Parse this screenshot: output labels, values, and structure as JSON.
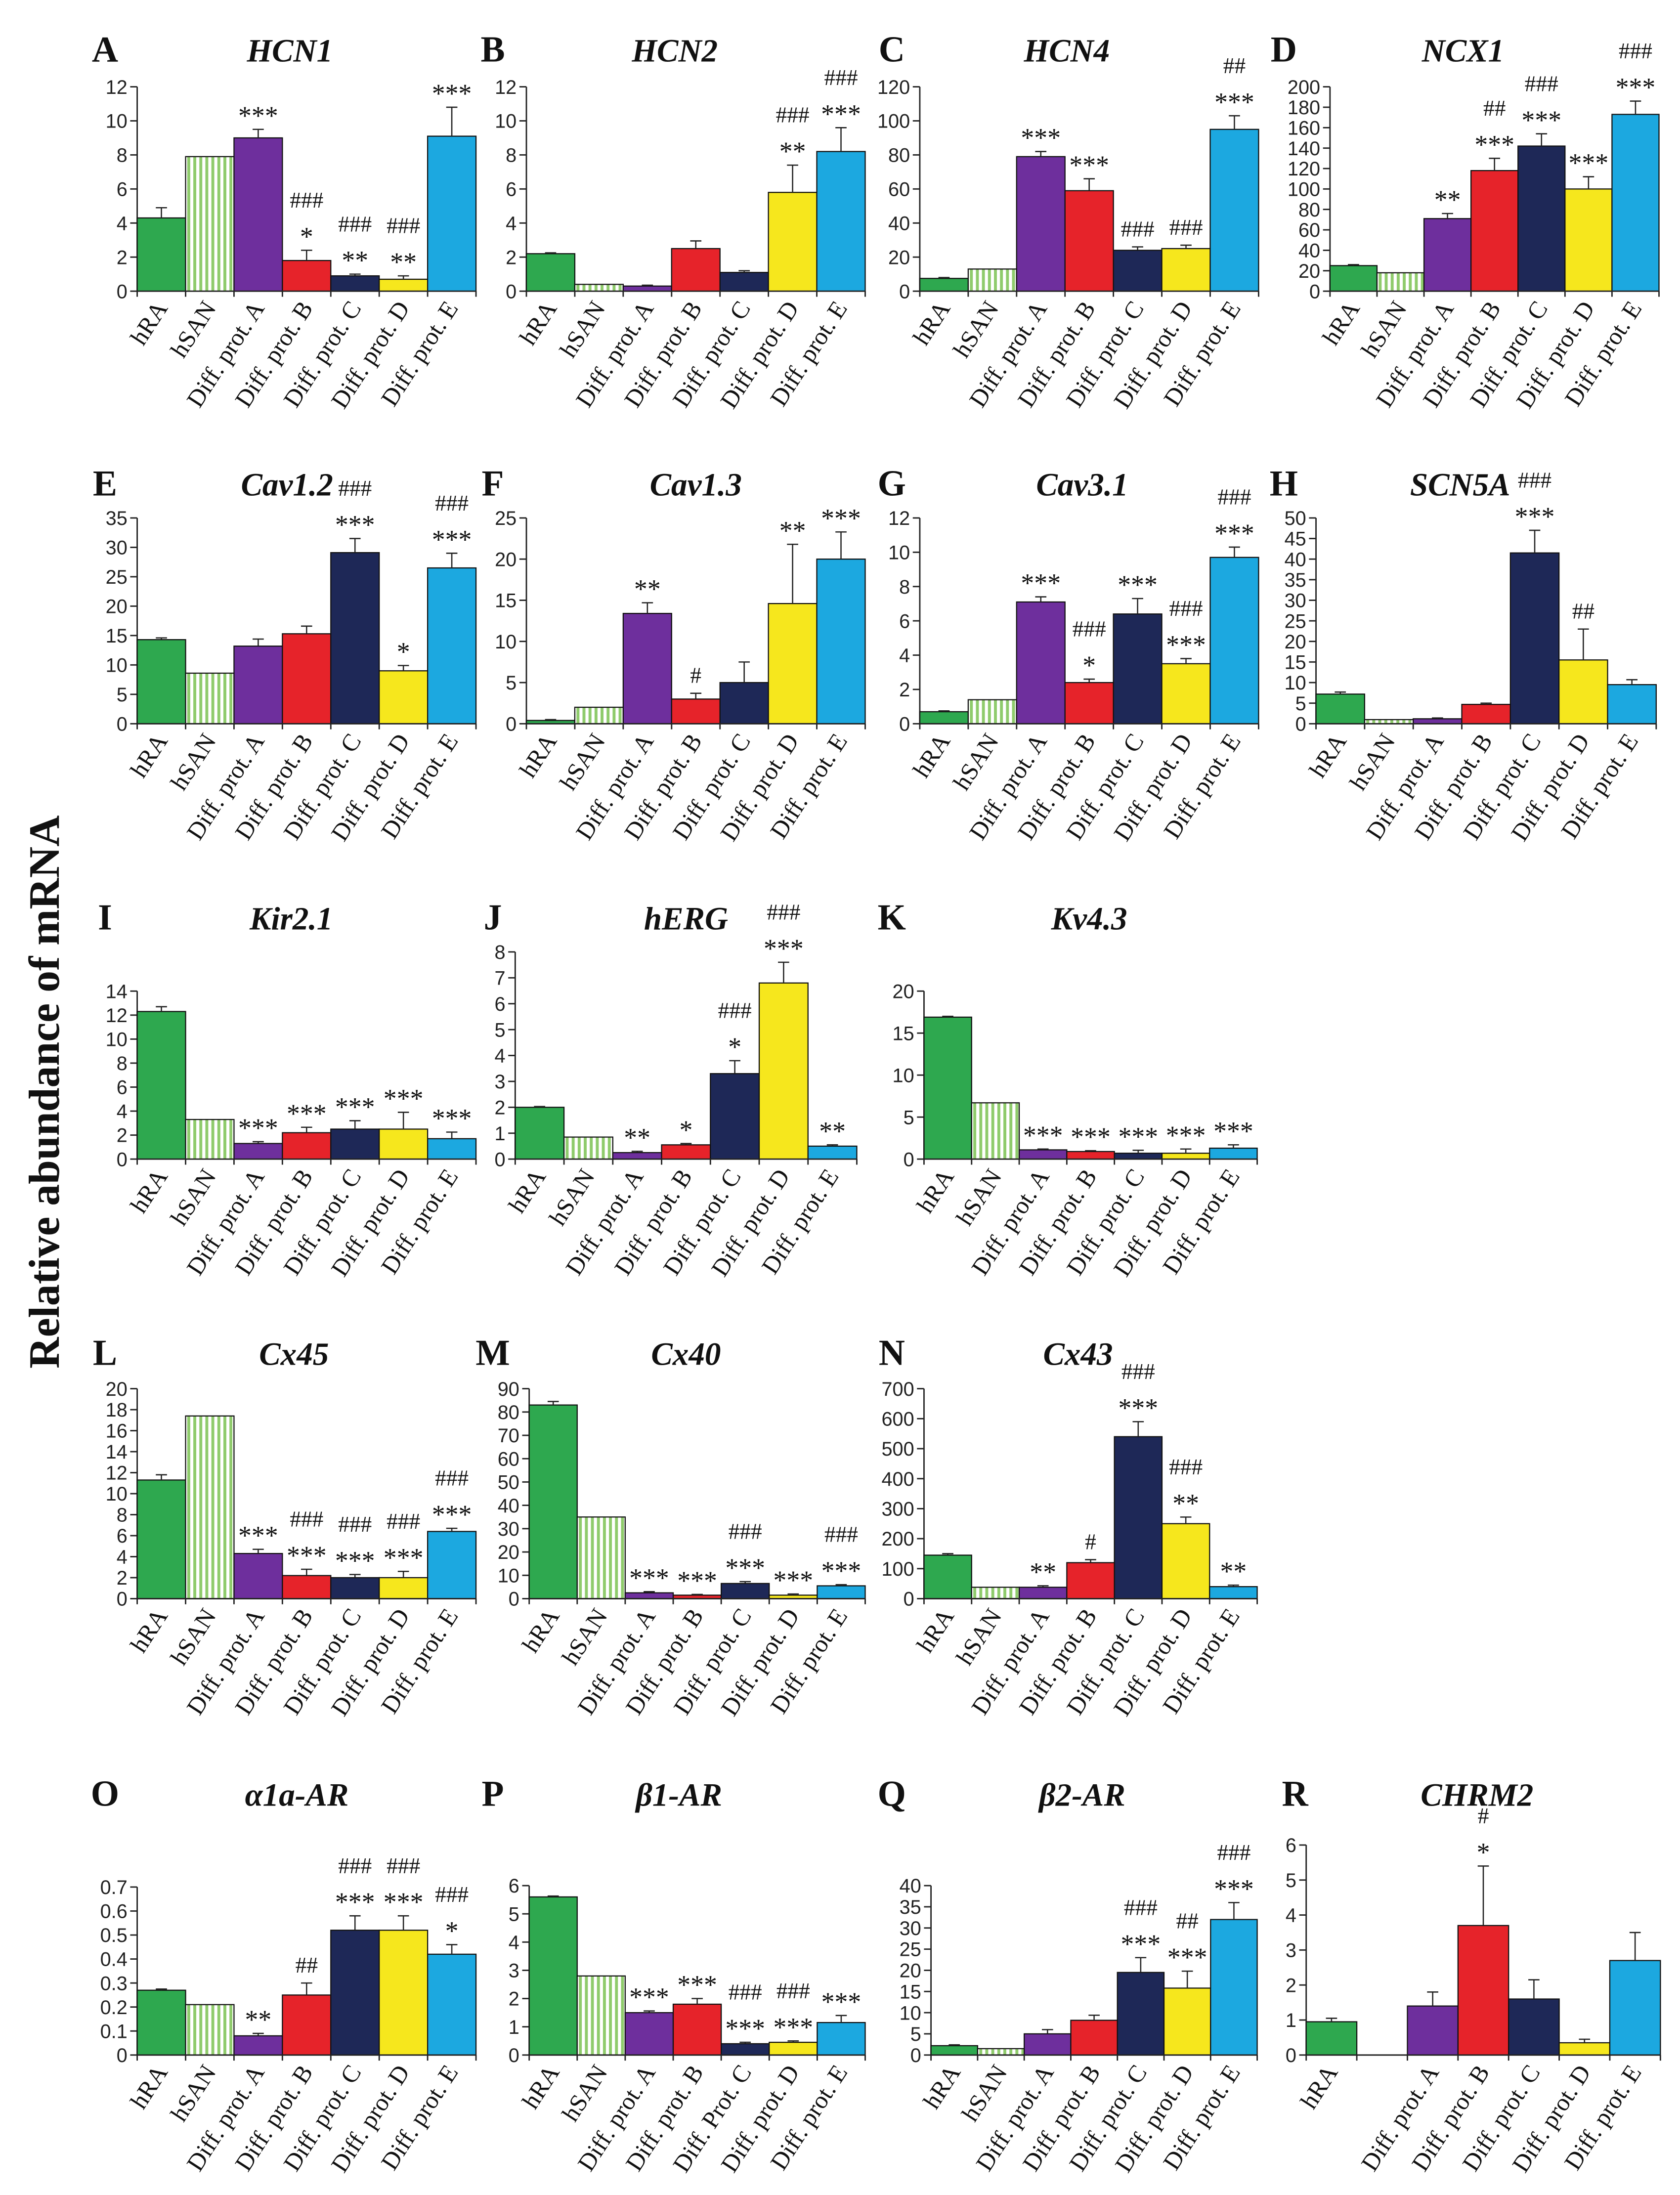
{
  "figure": {
    "ylabel": "Relative abundance of mRNA"
  },
  "colors": {
    "bars": [
      "#2ea84f",
      "#ffffff",
      "#6e2f9d",
      "#e6232a",
      "#1e2857",
      "#f6e71d",
      "#1ca8e0"
    ],
    "hsan_stripe": "#8fcb6c",
    "outline": "#111111"
  },
  "chart_data": [
    {
      "panel": "A",
      "type": "bar",
      "title": "HCN1",
      "categories": [
        "hRA",
        "hSAN",
        "Diff. prot. A",
        "Diff. prot. B",
        "Diff. prot. C",
        "Diff. prot. D",
        "Diff. prot. E"
      ],
      "values": [
        4.3,
        7.9,
        9.0,
        1.8,
        0.9,
        0.7,
        9.1
      ],
      "errors": [
        0.6,
        0,
        0.5,
        0.6,
        0.1,
        0.2,
        1.7
      ],
      "ylim": [
        0,
        12
      ],
      "yticks": [
        0,
        2,
        4,
        6,
        8,
        10,
        12
      ],
      "annotations": [
        [],
        [],
        [
          "***"
        ],
        [
          "###",
          "*"
        ],
        [
          "###",
          "**"
        ],
        [
          "###",
          "**"
        ],
        [
          "***"
        ]
      ]
    },
    {
      "panel": "B",
      "type": "bar",
      "title": "HCN2",
      "categories": [
        "hRA",
        "hSAN",
        "Diff. prot. A",
        "Diff. prot. B",
        "Diff. prot. C",
        "Diff. prot. D",
        "Diff. prot. E"
      ],
      "values": [
        2.2,
        0.4,
        0.3,
        2.5,
        1.1,
        5.8,
        8.2
      ],
      "errors": [
        0.05,
        0,
        0.05,
        0.45,
        0.1,
        1.6,
        1.4
      ],
      "ylim": [
        0,
        12
      ],
      "yticks": [
        0,
        2,
        4,
        6,
        8,
        10,
        12
      ],
      "annotations": [
        [],
        [],
        [],
        [],
        [],
        [
          "###",
          "**"
        ],
        [
          "###",
          "***"
        ]
      ]
    },
    {
      "panel": "C",
      "type": "bar",
      "title": "HCN4",
      "categories": [
        "hRA",
        "hSAN",
        "Diff. prot. A",
        "Diff. prot. B",
        "Diff. prot. C",
        "Diff. prot. D",
        "Diff. prot. E"
      ],
      "values": [
        7.5,
        13,
        79,
        59,
        24,
        25,
        95
      ],
      "errors": [
        0.5,
        0,
        3,
        7,
        2,
        2,
        8
      ],
      "ylim": [
        0,
        120
      ],
      "yticks": [
        0,
        20,
        40,
        60,
        80,
        100,
        120
      ],
      "annotations": [
        [],
        [],
        [
          "***"
        ],
        [
          "***"
        ],
        [
          "###"
        ],
        [
          "###"
        ],
        [
          "##",
          "***"
        ]
      ]
    },
    {
      "panel": "D",
      "type": "bar",
      "title": "NCX1",
      "categories": [
        "hRA",
        "hSAN",
        "Diff. prot. A",
        "Diff. prot. B",
        "Diff. prot. C",
        "Diff. prot. D",
        "Diff. prot. E"
      ],
      "values": [
        25,
        18,
        71,
        118,
        142,
        100,
        173
      ],
      "errors": [
        1,
        0,
        5,
        12,
        12,
        12,
        13
      ],
      "ylim": [
        0,
        200
      ],
      "yticks": [
        0,
        20,
        40,
        60,
        80,
        100,
        120,
        140,
        160,
        180,
        200
      ],
      "annotations": [
        [],
        [],
        [
          "**"
        ],
        [
          "##",
          "***"
        ],
        [
          "###",
          "***"
        ],
        [
          "***"
        ],
        [
          "###",
          "***"
        ]
      ]
    },
    {
      "panel": "E",
      "type": "bar",
      "title": "Cav1.2",
      "categories": [
        "hRA",
        "hSAN",
        "Diff. prot. A",
        "Diff. prot. B",
        "Diff. prot. C",
        "Diff. prot. D",
        "Diff. prot. E"
      ],
      "values": [
        14.3,
        8.6,
        13.2,
        15.3,
        29.1,
        9.0,
        26.5
      ],
      "errors": [
        0.3,
        0,
        1.2,
        1.3,
        2.4,
        0.9,
        2.5
      ],
      "ylim": [
        0,
        35
      ],
      "yticks": [
        0,
        5,
        10,
        15,
        20,
        25,
        30,
        35
      ],
      "annotations": [
        [],
        [],
        [],
        [],
        [
          "###",
          "***"
        ],
        [
          "*"
        ],
        [
          "###",
          "***"
        ]
      ]
    },
    {
      "panel": "F",
      "type": "bar",
      "title": "Cav1.3",
      "categories": [
        "hRA",
        "hSAN",
        "Diff. prot. A",
        "Diff. prot. B",
        "Diff. prot. C",
        "Diff. prot. D",
        "Diff. prot. E"
      ],
      "values": [
        0.4,
        2.0,
        13.4,
        3.0,
        5.0,
        14.6,
        20.0
      ],
      "errors": [
        0.1,
        0,
        1.3,
        0.7,
        2.5,
        7.2,
        3.3
      ],
      "ylim": [
        0,
        25
      ],
      "yticks": [
        0,
        5,
        10,
        15,
        20,
        25
      ],
      "annotations": [
        [],
        [],
        [
          "**"
        ],
        [
          "#"
        ],
        [],
        [
          "**"
        ],
        [
          "***"
        ]
      ]
    },
    {
      "panel": "G",
      "type": "bar",
      "title": "Cav3.1",
      "categories": [
        "hRA",
        "hSAN",
        "Diff. prot. A",
        "Diff. prot. B",
        "Diff. prot. C",
        "Diff. prot. D",
        "Diff. prot. E"
      ],
      "values": [
        0.7,
        1.4,
        7.1,
        2.4,
        6.4,
        3.5,
        9.7
      ],
      "errors": [
        0.05,
        0,
        0.3,
        0.2,
        0.9,
        0.3,
        0.6
      ],
      "ylim": [
        0,
        12
      ],
      "yticks": [
        0,
        2,
        4,
        6,
        8,
        10,
        12
      ],
      "annotations": [
        [],
        [],
        [
          "***"
        ],
        [
          "###",
          "*"
        ],
        [
          "***"
        ],
        [
          "###",
          "***"
        ],
        [
          "###",
          "***"
        ]
      ]
    },
    {
      "panel": "H",
      "type": "bar",
      "title": "SCN5A",
      "categories": [
        "hRA",
        "hSAN",
        "Diff. prot. A",
        "Diff. prot. B",
        "Diff. prot. C",
        "Diff. prot. D",
        "Diff. prot. E"
      ],
      "values": [
        7.2,
        1.0,
        1.2,
        4.7,
        41.5,
        15.5,
        9.5
      ],
      "errors": [
        0.5,
        0,
        0.2,
        0.3,
        5.5,
        7.5,
        1.2
      ],
      "ylim": [
        0,
        50
      ],
      "yticks": [
        0,
        5,
        10,
        15,
        20,
        25,
        30,
        35,
        40,
        45,
        50
      ],
      "annotations": [
        [],
        [],
        [],
        [],
        [
          "###",
          "***"
        ],
        [
          "##"
        ],
        []
      ]
    },
    {
      "panel": "I",
      "type": "bar",
      "title": "Kir2.1",
      "categories": [
        "hRA",
        "hSAN",
        "Diff. prot. A",
        "Diff. prot. B",
        "Diff. prot. C",
        "Diff. prot. D",
        "Diff. prot. E"
      ],
      "values": [
        12.3,
        3.3,
        1.3,
        2.2,
        2.5,
        2.5,
        1.7
      ],
      "errors": [
        0.4,
        0,
        0.15,
        0.45,
        0.7,
        1.4,
        0.55
      ],
      "ylim": [
        0,
        14
      ],
      "yticks": [
        0,
        2,
        4,
        6,
        8,
        10,
        12,
        14
      ],
      "annotations": [
        [],
        [],
        [
          "***"
        ],
        [
          "***"
        ],
        [
          "***"
        ],
        [
          "***"
        ],
        [
          "***"
        ]
      ]
    },
    {
      "panel": "J",
      "type": "bar",
      "title": "hERG",
      "categories": [
        "hRA",
        "hSAN",
        "Diff. prot. A",
        "Diff. prot. B",
        "Diff. prot. C",
        "Diff. prot. D",
        "Diff. prot. E"
      ],
      "values": [
        2.0,
        0.85,
        0.25,
        0.55,
        3.3,
        6.8,
        0.5
      ],
      "errors": [
        0.03,
        0,
        0.05,
        0.05,
        0.5,
        0.8,
        0.05
      ],
      "ylim": [
        0,
        8
      ],
      "yticks": [
        0,
        1,
        2,
        3,
        4,
        5,
        6,
        7,
        8
      ],
      "annotations": [
        [],
        [],
        [
          "**"
        ],
        [
          "*"
        ],
        [
          "###",
          "*"
        ],
        [
          "###",
          "***"
        ],
        [
          "**"
        ]
      ]
    },
    {
      "panel": "K",
      "type": "bar",
      "title": "Kv4.3",
      "categories": [
        "hRA",
        "hSAN",
        "Diff. prot. A",
        "Diff. prot. B",
        "Diff. prot. C",
        "Diff. prot. D",
        "Diff. prot. E"
      ],
      "values": [
        16.9,
        6.7,
        1.1,
        0.9,
        0.7,
        0.7,
        1.3
      ],
      "errors": [
        0.1,
        0,
        0.1,
        0.1,
        0.35,
        0.5,
        0.4
      ],
      "ylim": [
        0,
        20
      ],
      "yticks": [
        0,
        5,
        10,
        15,
        20
      ],
      "annotations": [
        [],
        [],
        [
          "***"
        ],
        [
          "***"
        ],
        [
          "***"
        ],
        [
          "***"
        ],
        [
          "***"
        ]
      ]
    },
    {
      "panel": "L",
      "type": "bar",
      "title": "Cx45",
      "categories": [
        "hRA",
        "hSAN",
        "Diff. prot. A",
        "Diff. prot. B",
        "Diff. prot. C",
        "Diff. prot. D",
        "Diff. prot. E"
      ],
      "values": [
        11.3,
        17.4,
        4.3,
        2.2,
        2.0,
        2.0,
        6.4
      ],
      "errors": [
        0.5,
        0,
        0.4,
        0.6,
        0.3,
        0.6,
        0.3
      ],
      "ylim": [
        0,
        20
      ],
      "yticks": [
        0,
        2,
        4,
        6,
        8,
        10,
        12,
        14,
        16,
        18,
        20
      ],
      "annotations": [
        [],
        [],
        [
          "***"
        ],
        [
          "###",
          "***"
        ],
        [
          "###",
          "***"
        ],
        [
          "###",
          "***"
        ],
        [
          "###",
          "***"
        ]
      ]
    },
    {
      "panel": "M",
      "type": "bar",
      "title": "Cx40",
      "categories": [
        "hRA",
        "hSAN",
        "Diff. prot. A",
        "Diff. prot. B",
        "Diff. prot. C",
        "Diff. prot. D",
        "Diff. prot. E"
      ],
      "values": [
        83,
        35,
        2.5,
        1.5,
        6.5,
        1.5,
        5.5
      ],
      "errors": [
        1.5,
        0,
        0.5,
        0.3,
        0.8,
        0.5,
        0.5
      ],
      "ylim": [
        0,
        90
      ],
      "yticks": [
        0,
        10,
        20,
        30,
        40,
        50,
        60,
        70,
        80,
        90
      ],
      "annotations": [
        [],
        [],
        [
          "***"
        ],
        [
          "***"
        ],
        [
          "###",
          "***"
        ],
        [
          "***"
        ],
        [
          "###",
          "***"
        ]
      ]
    },
    {
      "panel": "N",
      "type": "bar",
      "title": "Cx43",
      "categories": [
        "hRA",
        "hSAN",
        "Diff. prot. A",
        "Diff. prot. B",
        "Diff. prot. C",
        "Diff. prot. D",
        "Diff. prot. E"
      ],
      "values": [
        145,
        38,
        38,
        120,
        540,
        250,
        40
      ],
      "errors": [
        5,
        0,
        5,
        10,
        50,
        22,
        5
      ],
      "ylim": [
        0,
        700
      ],
      "yticks": [
        0,
        100,
        200,
        300,
        400,
        500,
        600,
        700
      ],
      "annotations": [
        [],
        [],
        [
          "**"
        ],
        [
          "#"
        ],
        [
          "###",
          "***"
        ],
        [
          "###",
          "**"
        ],
        [
          "**"
        ]
      ]
    },
    {
      "panel": "O",
      "type": "bar",
      "title": "α1a-AR",
      "categories": [
        "hRA",
        "hSAN",
        "Diff. prot. A",
        "Diff. prot. B",
        "Diff. prot. C",
        "Diff. prot. D",
        "Diff. prot. E"
      ],
      "values": [
        0.27,
        0.21,
        0.08,
        0.25,
        0.52,
        0.52,
        0.42
      ],
      "errors": [
        0.005,
        0,
        0.01,
        0.05,
        0.06,
        0.06,
        0.04
      ],
      "ylim": [
        0,
        0.7
      ],
      "yticks": [
        0,
        0.1,
        0.2,
        0.3,
        0.4,
        0.5,
        0.6,
        0.7
      ],
      "annotations": [
        [],
        [],
        [
          "**"
        ],
        [
          "##"
        ],
        [
          "###",
          "***"
        ],
        [
          "###",
          "***"
        ],
        [
          "###",
          "*"
        ]
      ]
    },
    {
      "panel": "P",
      "type": "bar",
      "title": "β1-AR",
      "categories": [
        "hRA",
        "hSAN",
        "Diff. prot. A",
        "Diff. prot. B",
        "Diff. Prot. C",
        "Diff. prot. D",
        "Diff. prot. E"
      ],
      "values": [
        5.6,
        2.8,
        1.5,
        1.8,
        0.4,
        0.45,
        1.15
      ],
      "errors": [
        0.03,
        0,
        0.06,
        0.2,
        0.05,
        0.05,
        0.25
      ],
      "ylim": [
        0,
        6
      ],
      "yticks": [
        0,
        1,
        2,
        3,
        4,
        5,
        6
      ],
      "annotations": [
        [],
        [],
        [
          "***"
        ],
        [
          "***"
        ],
        [
          "###",
          "***"
        ],
        [
          "###",
          "***"
        ],
        [
          "***"
        ]
      ]
    },
    {
      "panel": "Q",
      "type": "bar",
      "title": "β2-AR",
      "categories": [
        "hRA",
        "hSAN",
        "Diff. prot. A",
        "Diff. prot. B",
        "Diff. prot. C",
        "Diff. prot. D",
        "Diff. prot. E"
      ],
      "values": [
        2.2,
        1.5,
        5.0,
        8.2,
        19.5,
        15.8,
        32.0
      ],
      "errors": [
        0.2,
        0,
        1,
        1.2,
        3.5,
        4,
        4
      ],
      "ylim": [
        0,
        40
      ],
      "yticks": [
        0,
        5,
        10,
        15,
        20,
        25,
        30,
        35,
        40
      ],
      "annotations": [
        [],
        [],
        [],
        [],
        [
          "###",
          "***"
        ],
        [
          "##",
          "***"
        ],
        [
          "###",
          "***"
        ]
      ]
    },
    {
      "panel": "R",
      "type": "bar",
      "title": "CHRM2",
      "categories": [
        "hRA",
        null,
        "Diff. prot. A",
        "Diff. prot. B",
        "Diff. prot. C",
        "Diff. prot. D",
        "Diff. prot. E"
      ],
      "values": [
        0.95,
        null,
        1.4,
        3.7,
        1.6,
        0.35,
        2.7
      ],
      "errors": [
        0.1,
        null,
        0.4,
        1.7,
        0.55,
        0.1,
        0.8
      ],
      "ylim": [
        0,
        6
      ],
      "yticks": [
        0,
        1,
        2,
        3,
        4,
        5,
        6
      ],
      "annotations": [
        [],
        [],
        [],
        [
          "#",
          "*"
        ],
        [],
        [],
        []
      ]
    }
  ]
}
